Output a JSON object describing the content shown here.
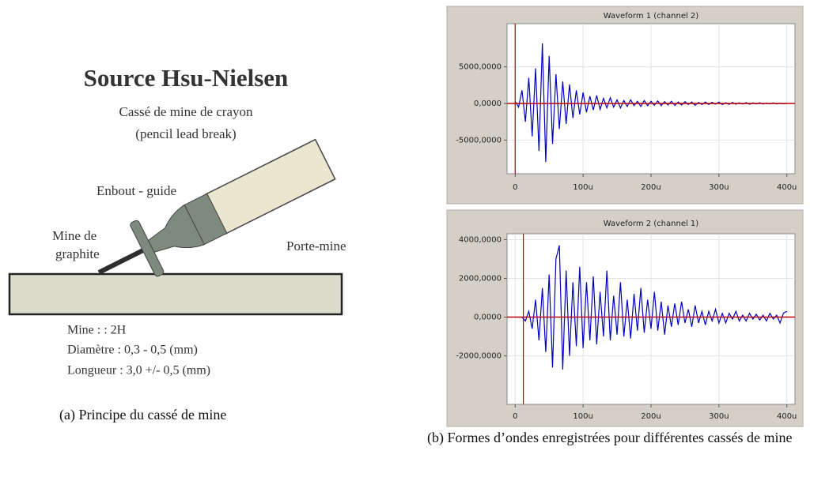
{
  "figure_a": {
    "title": "Source Hsu-Nielsen",
    "subtitle": "Cassé de mine de crayon",
    "subtitle2": "(pencil lead break)",
    "label_guide": "Enbout - guide",
    "label_lead": "Mine de",
    "label_lead2": "graphite",
    "label_holder": "Porte-mine",
    "specs": [
      "Mine : : 2H",
      "Diamètre : 0,3 - 0,5 (mm)",
      "Longueur : 3,0 +/- 0,5 (mm)"
    ],
    "caption": "(a) Principe du cassé de mine"
  },
  "chart_data": [
    {
      "type": "line",
      "title": "Waveform 1 (channel 2)",
      "x": [
        0,
        5,
        10,
        15,
        20,
        25,
        30,
        35,
        40,
        45,
        50,
        55,
        60,
        65,
        70,
        75,
        80,
        85,
        90,
        95,
        100,
        105,
        110,
        115,
        120,
        125,
        130,
        135,
        140,
        145,
        150,
        155,
        160,
        165,
        170,
        175,
        180,
        185,
        190,
        195,
        200,
        205,
        210,
        215,
        220,
        225,
        230,
        235,
        240,
        245,
        250,
        255,
        260,
        265,
        270,
        275,
        280,
        285,
        290,
        295,
        300,
        305,
        310,
        315,
        320,
        325,
        330,
        335,
        340,
        345,
        350,
        355,
        360,
        365,
        370,
        375,
        380,
        385,
        390,
        395,
        400
      ],
      "series": [
        {
          "color": "#0000c0",
          "values": [
            300,
            -500,
            1800,
            -2500,
            3500,
            -4500,
            4800,
            -6500,
            8200,
            -8000,
            6500,
            -5500,
            4000,
            -3500,
            3000,
            -2800,
            2600,
            -2000,
            1800,
            -1500,
            1500,
            -1200,
            1000,
            -900,
            1100,
            -800,
            700,
            -600,
            800,
            -500,
            500,
            -600,
            400,
            -400,
            500,
            -300,
            300,
            -400,
            400,
            -300,
            300,
            -250,
            350,
            -300,
            250,
            -200,
            300,
            -250,
            200,
            -200,
            250,
            -150,
            200,
            -250,
            150,
            -150,
            200,
            -150,
            150,
            -100,
            200,
            -150,
            100,
            -120,
            150,
            -100,
            100,
            -80,
            120,
            -100,
            80,
            -60,
            100,
            -80,
            60,
            -50,
            80,
            -60,
            50,
            -40,
            30
          ]
        }
      ],
      "xlim": [
        -12,
        412
      ],
      "ylim": [
        -9600,
        10900
      ],
      "xticks": [
        0,
        {
          "value": 100,
          "label": "100u"
        },
        {
          "value": 200,
          "label": "200u"
        },
        {
          "value": 300,
          "label": "300u"
        },
        {
          "value": 400,
          "label": "400u"
        }
      ],
      "yticks": [
        {
          "value": -5000,
          "label": "-5000,0000"
        },
        {
          "value": 0,
          "label": "0,0000"
        },
        {
          "value": 5000,
          "label": "5000,0000"
        }
      ],
      "reference_lines": {
        "x": 0,
        "y": 0,
        "color": "#c00000"
      },
      "grid": true
    },
    {
      "type": "line",
      "title": "Waveform 2 (channel 1)",
      "x": [
        0,
        5,
        10,
        15,
        20,
        25,
        30,
        35,
        40,
        45,
        50,
        55,
        60,
        65,
        70,
        75,
        80,
        85,
        90,
        95,
        100,
        105,
        110,
        115,
        120,
        125,
        130,
        135,
        140,
        145,
        150,
        155,
        160,
        165,
        170,
        175,
        180,
        185,
        190,
        195,
        200,
        205,
        210,
        215,
        220,
        225,
        230,
        235,
        240,
        245,
        250,
        255,
        260,
        265,
        270,
        275,
        280,
        285,
        290,
        295,
        300,
        305,
        310,
        315,
        320,
        325,
        330,
        335,
        340,
        345,
        350,
        355,
        360,
        365,
        370,
        375,
        380,
        385,
        390,
        395,
        400
      ],
      "series": [
        {
          "color": "#0000c0",
          "values": [
            0,
            0,
            0,
            -200,
            300,
            -600,
            900,
            -1200,
            1500,
            -1800,
            2200,
            -2600,
            3000,
            3700,
            -2700,
            2400,
            -2000,
            1800,
            -1500,
            2600,
            -1600,
            1800,
            -1200,
            2100,
            -1400,
            1300,
            -1000,
            2400,
            -1200,
            1100,
            -900,
            1800,
            -1000,
            900,
            -1100,
            1200,
            -700,
            1500,
            -800,
            900,
            -600,
            1300,
            -700,
            800,
            -900,
            600,
            -500,
            700,
            -400,
            800,
            -300,
            400,
            -500,
            600,
            -300,
            300,
            -400,
            300,
            -200,
            400,
            -300,
            200,
            -300,
            200,
            -100,
            300,
            -200,
            100,
            -200,
            200,
            -100,
            150,
            -150,
            100,
            -200,
            200,
            -100,
            100,
            -300,
            200,
            300
          ]
        }
      ],
      "xlim": [
        -12,
        412
      ],
      "ylim": [
        -4500,
        4300
      ],
      "xticks": [
        0,
        {
          "value": 100,
          "label": "100u"
        },
        {
          "value": 200,
          "label": "200u"
        },
        {
          "value": 300,
          "label": "300u"
        },
        {
          "value": 400,
          "label": "400u"
        }
      ],
      "yticks": [
        {
          "value": -2000,
          "label": "-2000,0000"
        },
        {
          "value": 0,
          "label": "0,0000"
        },
        {
          "value": 2000,
          "label": "2000,0000"
        },
        {
          "value": 4000,
          "label": "4000,0000"
        }
      ],
      "reference_lines": {
        "x": 12,
        "y": 0,
        "color": "#c00000"
      },
      "grid": true
    }
  ],
  "caption_b": "(b) Formes d’ondes enregistrées pour différentes cassés de mine"
}
